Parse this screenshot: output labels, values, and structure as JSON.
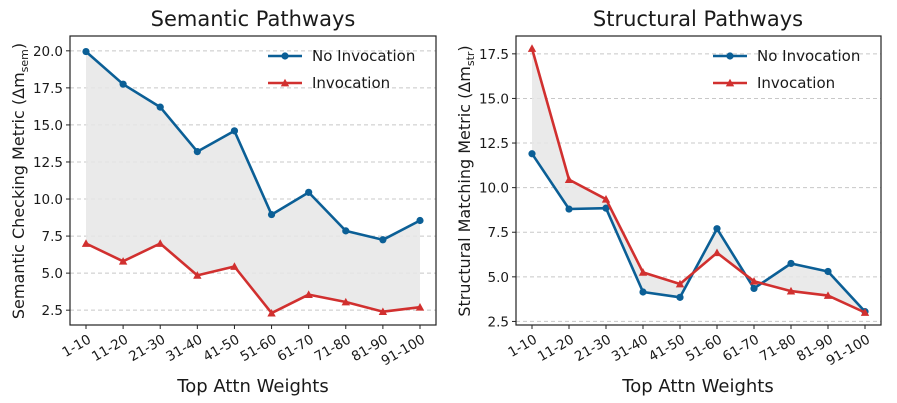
{
  "chart_data": [
    {
      "type": "line",
      "title": "Semantic Pathways",
      "xlabel": "Top Attn Weights",
      "ylabel": "Semantic Checking Metric (Δm",
      "ylabel_sub": "sem",
      "ylabel_close": ")",
      "categories": [
        "1-10",
        "11-20",
        "21-30",
        "31-40",
        "41-50",
        "51-60",
        "61-70",
        "71-80",
        "81-90",
        "91-100"
      ],
      "ylim": [
        1.5,
        21.0
      ],
      "yticks": [
        "2.5",
        "5.0",
        "7.5",
        "10.0",
        "12.5",
        "15.0",
        "17.5",
        "20.0"
      ],
      "grid": true,
      "legend": "top-right",
      "series": [
        {
          "name": "No Invocation",
          "color": "#0b5f96",
          "marker": "circle",
          "values": [
            19.95,
            17.75,
            16.2,
            13.2,
            14.6,
            8.95,
            10.45,
            7.85,
            7.25,
            8.55
          ]
        },
        {
          "name": "Invocation",
          "color": "#d1302f",
          "marker": "triangle",
          "values": [
            7.0,
            5.8,
            7.0,
            4.85,
            5.45,
            2.3,
            3.55,
            3.05,
            2.4,
            2.7
          ]
        }
      ]
    },
    {
      "type": "line",
      "title": "Structural Pathways",
      "xlabel": "Top Attn Weights",
      "ylabel": "Structural Matching Metric (Δm",
      "ylabel_sub": "str",
      "ylabel_close": ")",
      "categories": [
        "1-10",
        "11-20",
        "21-30",
        "31-40",
        "41-50",
        "51-60",
        "61-70",
        "71-80",
        "81-90",
        "91-100"
      ],
      "ylim": [
        2.3,
        18.5
      ],
      "yticks": [
        "2.5",
        "5.0",
        "7.5",
        "10.0",
        "12.5",
        "15.0",
        "17.5"
      ],
      "grid": true,
      "legend": "top-right",
      "series": [
        {
          "name": "No Invocation",
          "color": "#0b5f96",
          "marker": "circle",
          "values": [
            11.9,
            8.8,
            8.85,
            4.15,
            3.85,
            7.7,
            4.35,
            5.75,
            5.3,
            3.05
          ]
        },
        {
          "name": "Invocation",
          "color": "#d1302f",
          "marker": "triangle",
          "values": [
            17.8,
            10.45,
            9.35,
            5.25,
            4.6,
            6.35,
            4.75,
            4.2,
            3.95,
            3.0
          ]
        }
      ]
    }
  ]
}
